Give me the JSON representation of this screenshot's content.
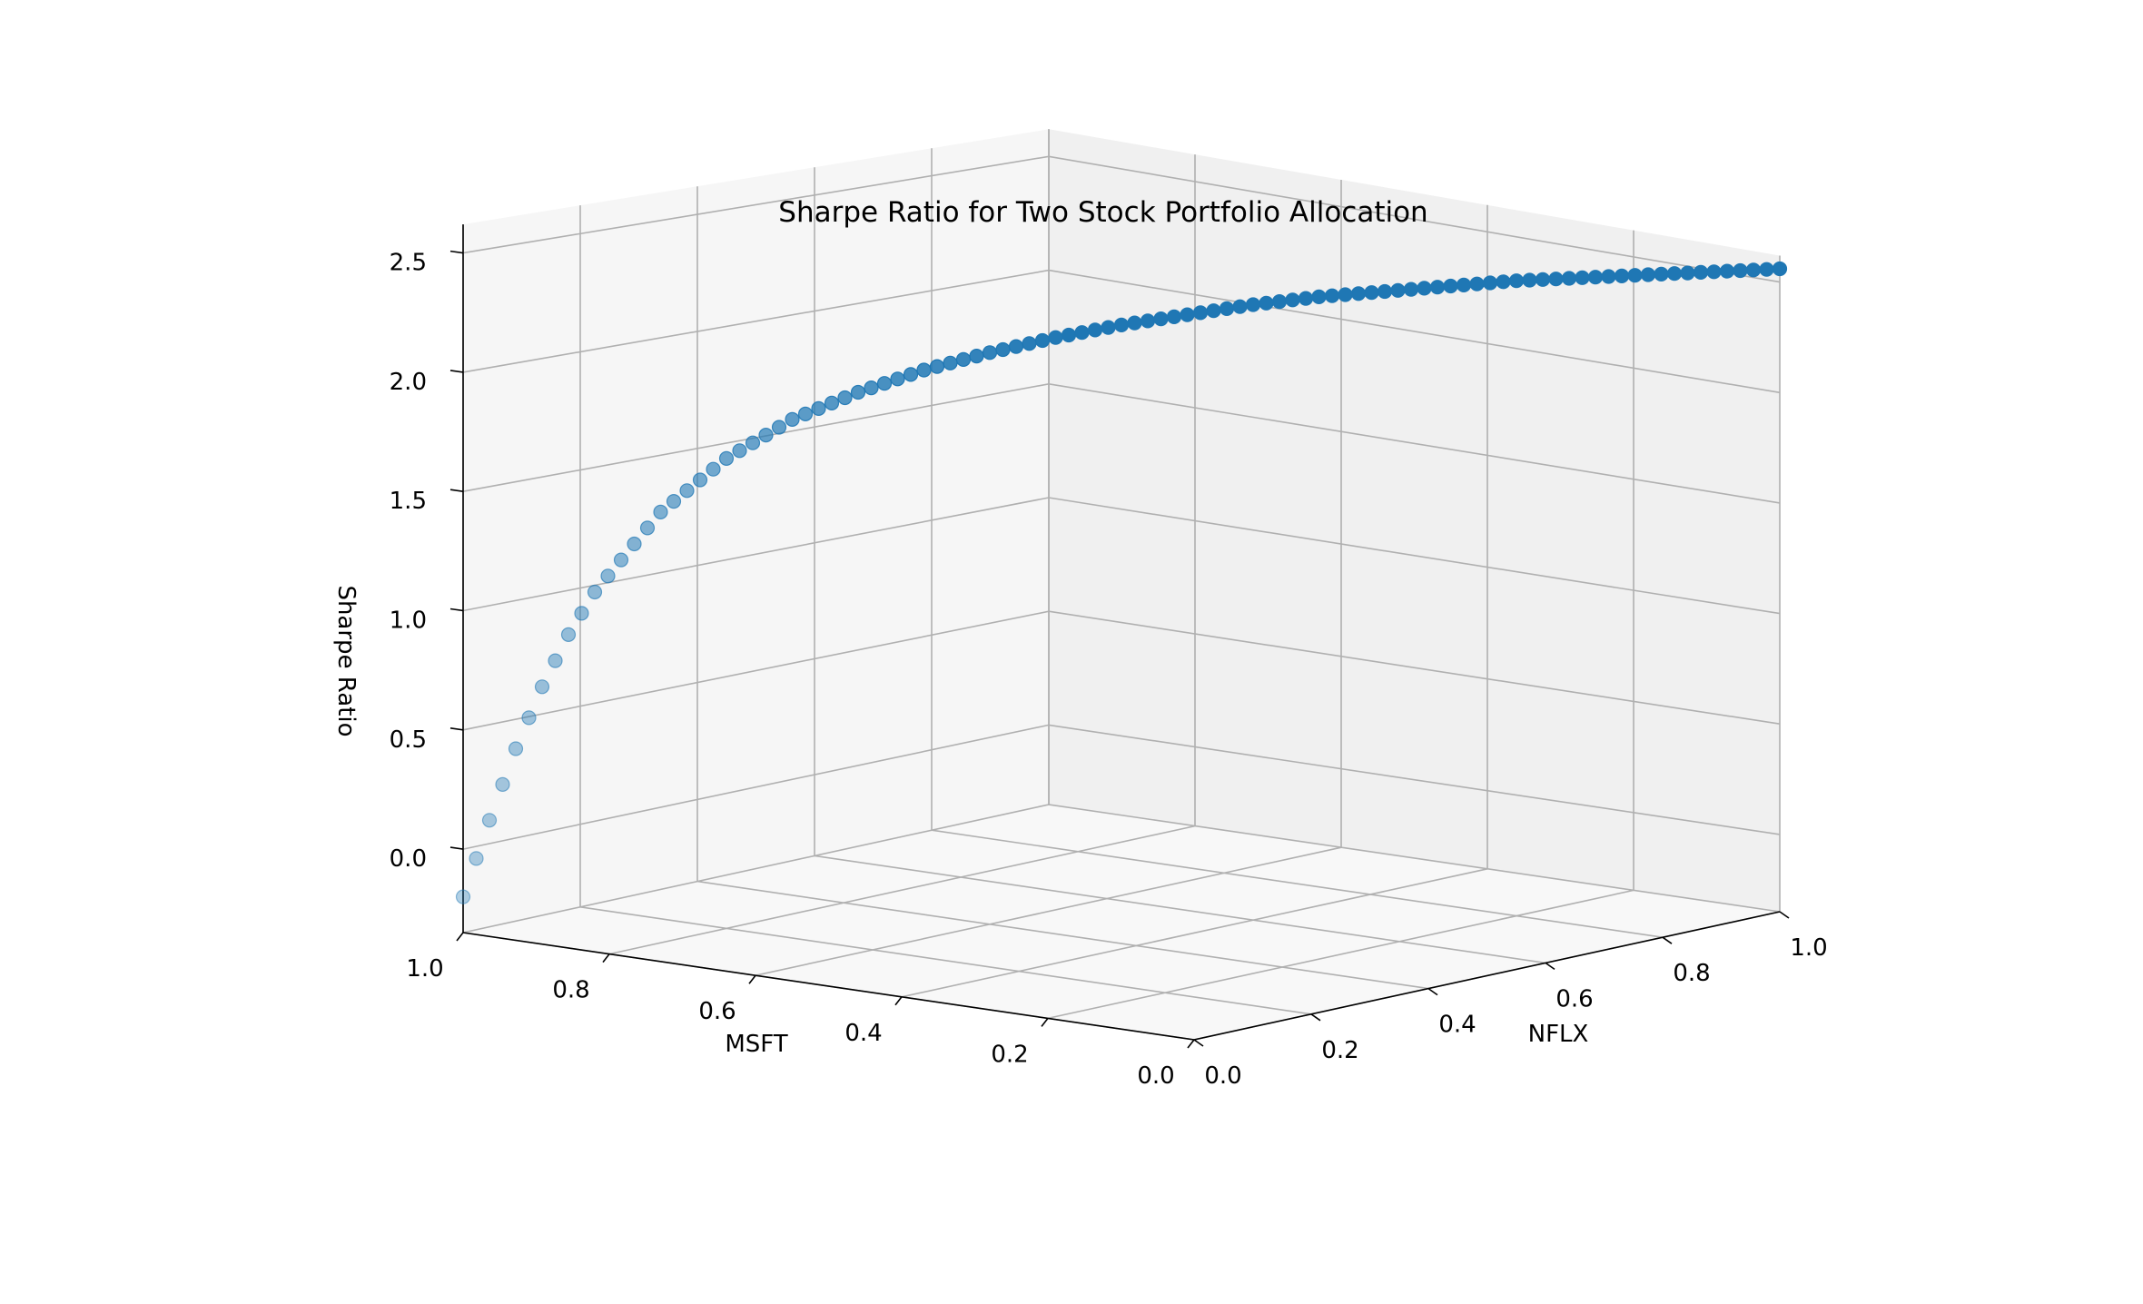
{
  "chart_data": {
    "type": "scatter",
    "projection": "3d",
    "title": "Sharpe Ratio for Two Stock Portfolio Allocation",
    "xlabel": "MSFT",
    "ylabel": "NFLX",
    "zlabel": "Sharpe Ratio",
    "xlim": [
      0,
      1
    ],
    "ylim": [
      0,
      1
    ],
    "zlim": [
      -0.35,
      2.62
    ],
    "xticks": [
      "0.0",
      "0.2",
      "0.4",
      "0.6",
      "0.8",
      "1.0"
    ],
    "yticks": [
      "0.0",
      "0.2",
      "0.4",
      "0.6",
      "0.8",
      "1.0"
    ],
    "zticks": [
      "0.0",
      "0.5",
      "1.0",
      "1.5",
      "2.0",
      "2.5"
    ],
    "grid": true,
    "series": [
      {
        "color": "#1f77b4",
        "point_count": 101,
        "nflx_weights": [
          0.0,
          0.02,
          0.04,
          0.06,
          0.08,
          0.1,
          0.15,
          0.2,
          0.25,
          0.3,
          0.35,
          0.4,
          0.45,
          0.5,
          0.55,
          0.6,
          0.65,
          0.7,
          0.75,
          0.8,
          0.85,
          0.9,
          0.95,
          1.0
        ],
        "msft_weights": [
          1.0,
          0.98,
          0.96,
          0.94,
          0.92,
          0.9,
          0.85,
          0.8,
          0.75,
          0.7,
          0.65,
          0.6,
          0.55,
          0.5,
          0.45,
          0.4,
          0.35,
          0.3,
          0.25,
          0.2,
          0.15,
          0.1,
          0.05,
          0.0
        ],
        "sharpe_ratio": [
          -0.2,
          0.12,
          0.42,
          0.68,
          0.9,
          1.08,
          1.42,
          1.65,
          1.82,
          1.94,
          2.04,
          2.12,
          2.19,
          2.25,
          2.3,
          2.35,
          2.39,
          2.42,
          2.45,
          2.48,
          2.5,
          2.52,
          2.54,
          2.56
        ]
      }
    ]
  }
}
